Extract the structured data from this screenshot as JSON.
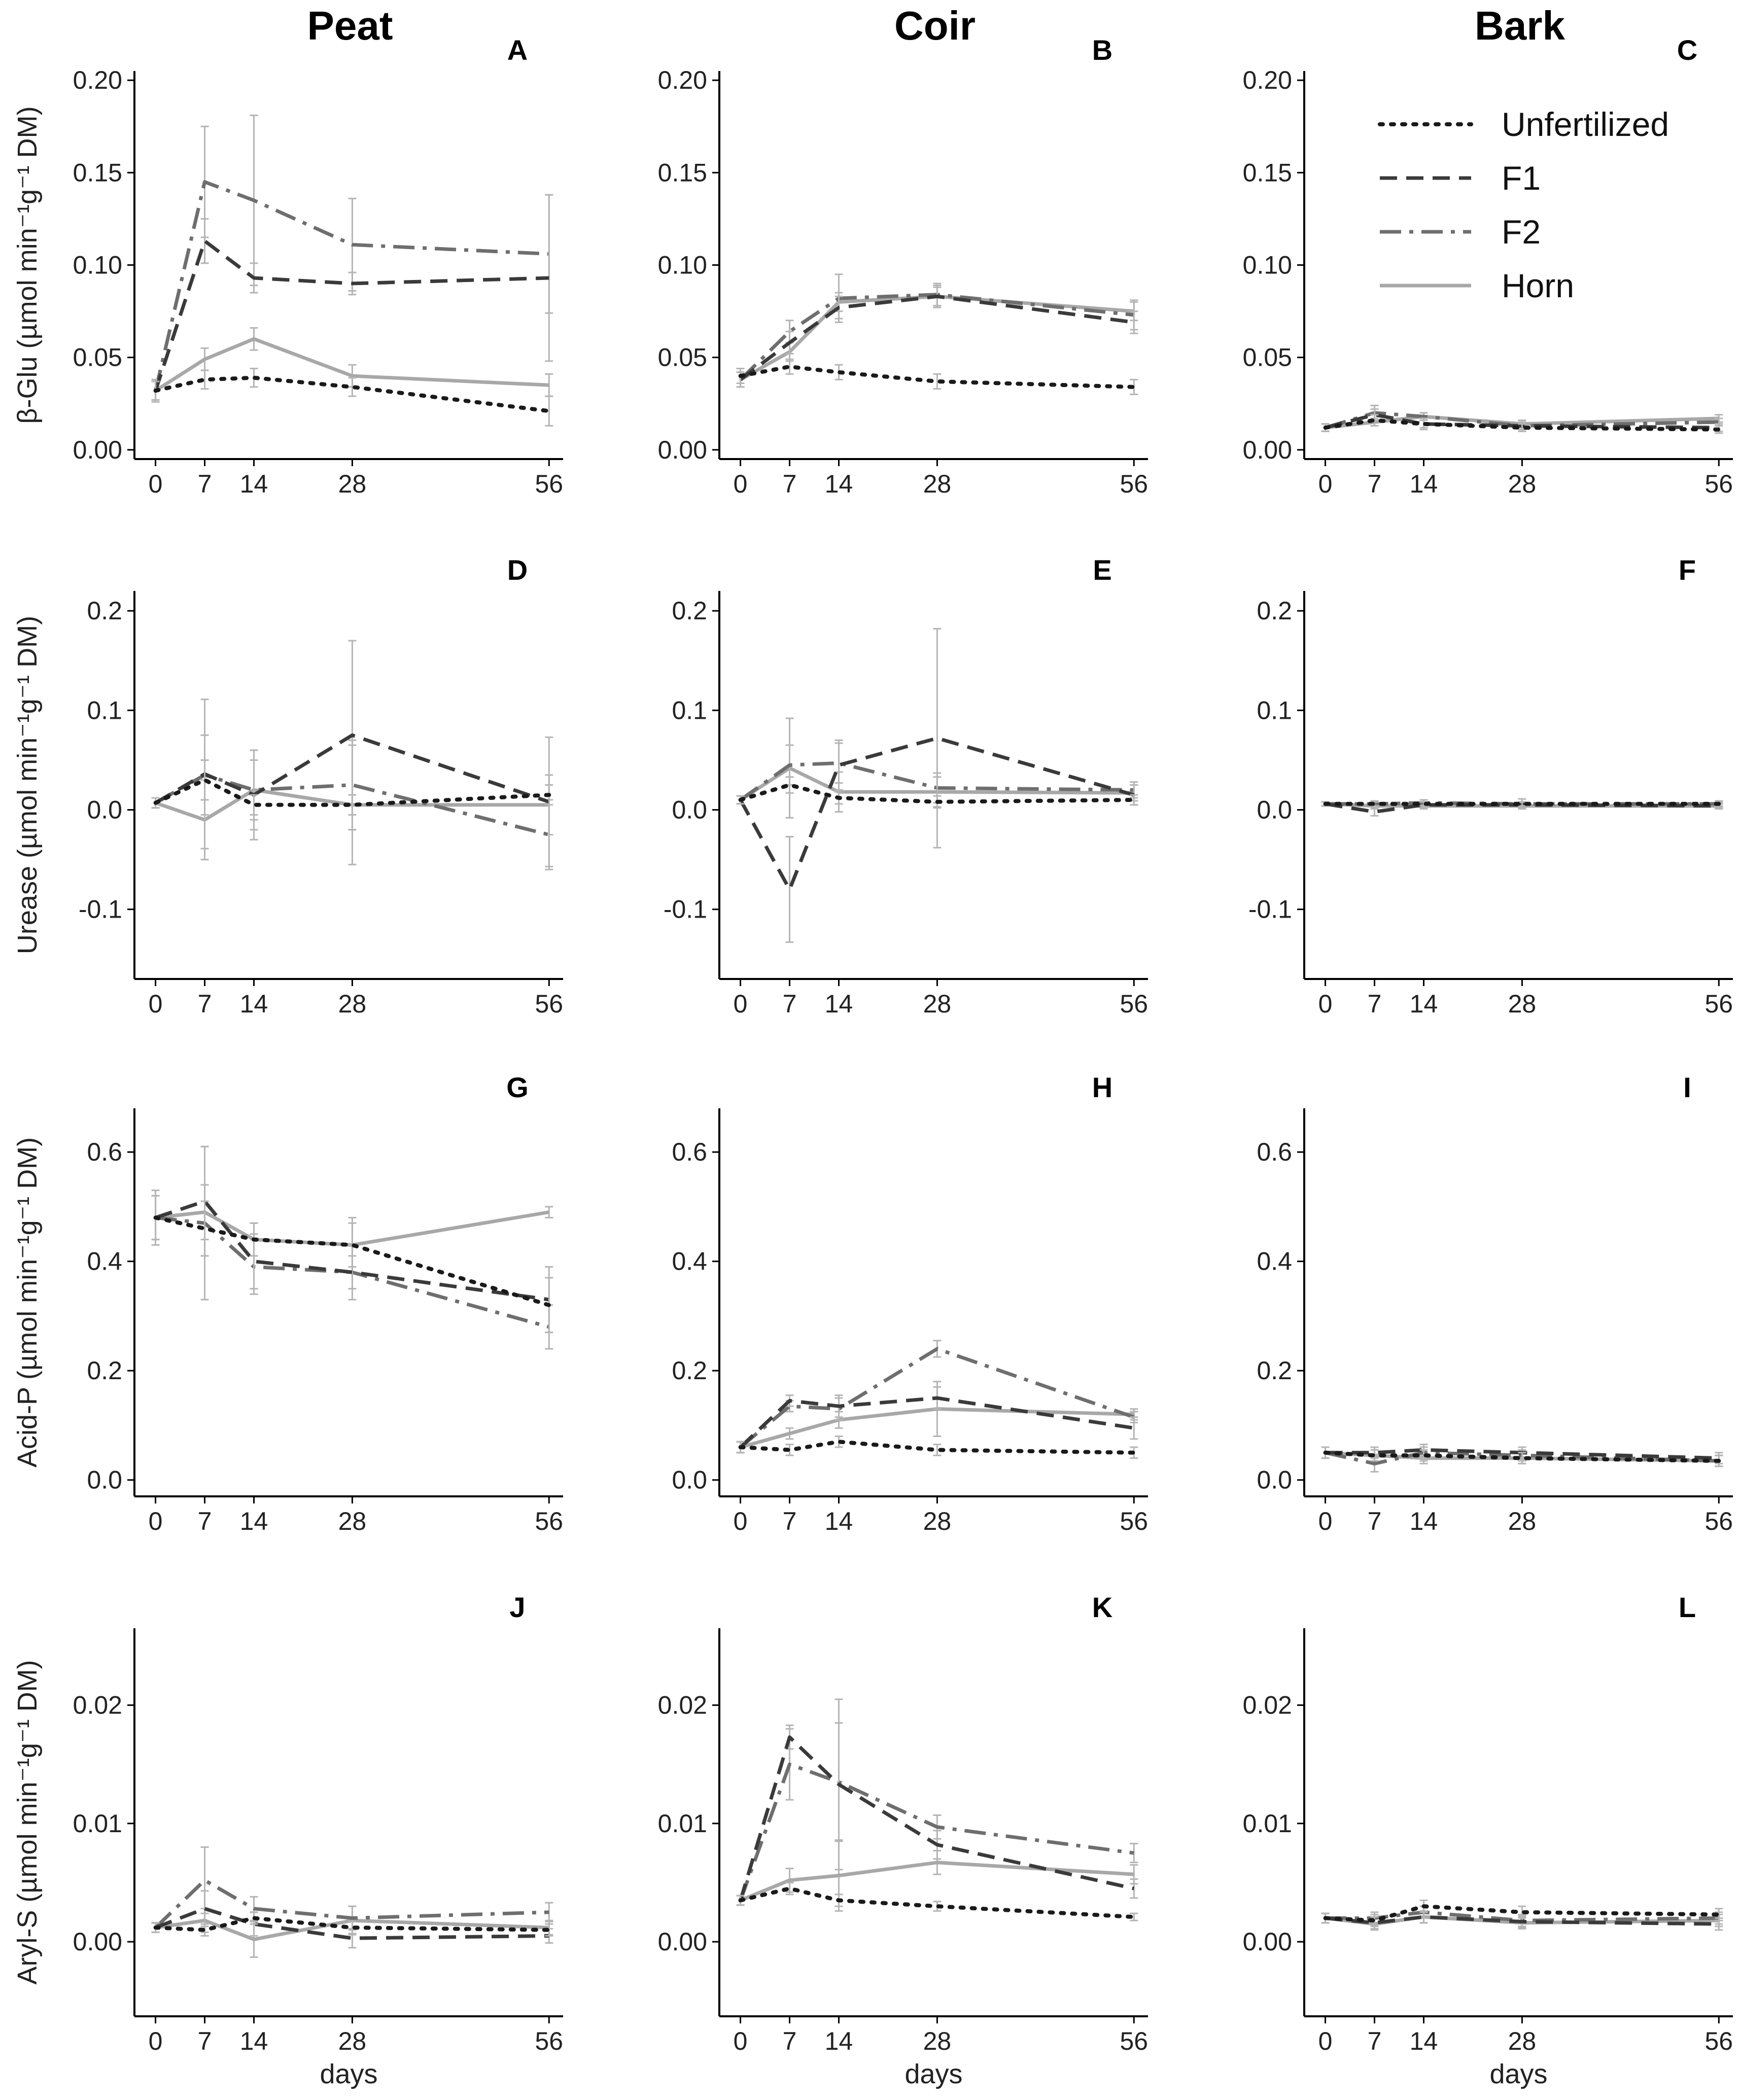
{
  "columns": [
    "Peat",
    "Coir",
    "Bark"
  ],
  "legend": [
    {
      "name": "Unfertilized",
      "color": "#1a1a1a",
      "dash": "dot"
    },
    {
      "name": "F1",
      "color": "#3a3a3a",
      "dash": "dash"
    },
    {
      "name": "F2",
      "color": "#6e6e6e",
      "dash": "dashdot"
    },
    {
      "name": "Horn",
      "color": "#a8a8a8",
      "dash": "solid"
    }
  ],
  "legend_position": "top-right of panel C",
  "x_ticks": [
    0,
    7,
    14,
    28,
    56
  ],
  "x_ticks_visible": [
    0,
    7,
    14,
    28,
    56
  ],
  "xlabel": "days",
  "grid": false,
  "chart_data": [
    {
      "type": "line",
      "panel": "A",
      "ylabel": "β-Glu (µmol min⁻¹g⁻¹ DM)",
      "ylim": [
        -0.005,
        0.205
      ],
      "yticks": [
        "0.00",
        "0.05",
        "0.10",
        "0.15",
        "0.20"
      ],
      "x": [
        0,
        7,
        14,
        28,
        56
      ],
      "series": [
        {
          "name": "Unfertilized",
          "values": [
            0.032,
            0.038,
            0.039,
            0.034,
            0.021
          ],
          "err": [
            0.005,
            0.005,
            0.005,
            0.005,
            0.008
          ]
        },
        {
          "name": "F1",
          "values": [
            0.032,
            0.113,
            0.093,
            0.09,
            0.093
          ],
          "err": [
            0.006,
            0.012,
            0.008,
            0.006,
            0.045
          ]
        },
        {
          "name": "F2",
          "values": [
            0.032,
            0.145,
            0.135,
            0.111,
            0.106
          ],
          "err": [
            0.006,
            0.03,
            0.046,
            0.025,
            0.032
          ]
        },
        {
          "name": "Horn",
          "values": [
            0.032,
            0.049,
            0.06,
            0.04,
            0.035
          ],
          "err": [
            0.006,
            0.006,
            0.006,
            0.006,
            0.006
          ]
        }
      ]
    },
    {
      "type": "line",
      "panel": "B",
      "ylabel": "",
      "ylim": [
        -0.005,
        0.205
      ],
      "yticks": [
        "0.00",
        "0.05",
        "0.10",
        "0.15",
        "0.20"
      ],
      "x": [
        0,
        7,
        14,
        28,
        56
      ],
      "series": [
        {
          "name": "Unfertilized",
          "values": [
            0.04,
            0.045,
            0.042,
            0.037,
            0.034
          ],
          "err": [
            0.004,
            0.004,
            0.004,
            0.004,
            0.004
          ]
        },
        {
          "name": "F1",
          "values": [
            0.038,
            0.058,
            0.077,
            0.083,
            0.069
          ],
          "err": [
            0.004,
            0.006,
            0.006,
            0.006,
            0.006
          ]
        },
        {
          "name": "F2",
          "values": [
            0.038,
            0.064,
            0.082,
            0.084,
            0.073
          ],
          "err": [
            0.004,
            0.006,
            0.013,
            0.006,
            0.008
          ]
        },
        {
          "name": "Horn",
          "values": [
            0.038,
            0.053,
            0.08,
            0.083,
            0.075
          ],
          "err": [
            0.004,
            0.005,
            0.005,
            0.005,
            0.005
          ]
        }
      ]
    },
    {
      "type": "line",
      "panel": "C",
      "ylabel": "",
      "ylim": [
        -0.005,
        0.205
      ],
      "yticks": [
        "0.00",
        "0.05",
        "0.10",
        "0.15",
        "0.20"
      ],
      "x": [
        0,
        7,
        14,
        28,
        56
      ],
      "series": [
        {
          "name": "Unfertilized",
          "values": [
            0.012,
            0.016,
            0.014,
            0.012,
            0.011
          ],
          "err": [
            0.002,
            0.003,
            0.002,
            0.002,
            0.002
          ]
        },
        {
          "name": "F1",
          "values": [
            0.012,
            0.019,
            0.014,
            0.013,
            0.012
          ],
          "err": [
            0.002,
            0.003,
            0.003,
            0.002,
            0.002
          ]
        },
        {
          "name": "F2",
          "values": [
            0.012,
            0.02,
            0.018,
            0.013,
            0.015
          ],
          "err": [
            0.002,
            0.004,
            0.002,
            0.002,
            0.002
          ]
        },
        {
          "name": "Horn",
          "values": [
            0.012,
            0.015,
            0.018,
            0.014,
            0.017
          ],
          "err": [
            0.002,
            0.002,
            0.002,
            0.002,
            0.002
          ]
        }
      ]
    },
    {
      "type": "line",
      "panel": "D",
      "ylabel": "Urease (µmol min⁻¹g⁻¹ DM)",
      "ylim": [
        -0.17,
        0.22
      ],
      "yticks": [
        "-0.1",
        "0.0",
        "0.1",
        "0.2"
      ],
      "x": [
        0,
        7,
        14,
        28,
        56
      ],
      "series": [
        {
          "name": "Unfertilized",
          "values": [
            0.007,
            0.03,
            0.005,
            0.005,
            0.015
          ],
          "err": [
            0.005,
            0.02,
            0.01,
            0.01,
            0.01
          ]
        },
        {
          "name": "F1",
          "values": [
            0.007,
            0.036,
            0.015,
            0.075,
            0.008
          ],
          "err": [
            0.005,
            0.075,
            0.045,
            0.095,
            0.065
          ]
        },
        {
          "name": "F2",
          "values": [
            0.007,
            0.035,
            0.02,
            0.025,
            -0.025
          ],
          "err": [
            0.005,
            0.04,
            0.04,
            0.045,
            0.035
          ]
        },
        {
          "name": "Horn",
          "values": [
            0.007,
            -0.01,
            0.02,
            0.005,
            0.005
          ],
          "err": [
            0.005,
            0.04,
            0.03,
            0.06,
            0.03
          ]
        }
      ]
    },
    {
      "type": "line",
      "panel": "E",
      "ylabel": "",
      "ylim": [
        -0.17,
        0.22
      ],
      "yticks": [
        "-0.1",
        "0.0",
        "0.1",
        "0.2"
      ],
      "x": [
        0,
        7,
        14,
        28,
        56
      ],
      "series": [
        {
          "name": "Unfertilized",
          "values": [
            0.01,
            0.025,
            0.012,
            0.008,
            0.01
          ],
          "err": [
            0.004,
            0.008,
            0.006,
            0.006,
            0.005
          ]
        },
        {
          "name": "F1",
          "values": [
            0.01,
            -0.08,
            0.045,
            0.072,
            0.015
          ],
          "err": [
            0.004,
            0.053,
            0.025,
            0.11,
            0.01
          ]
        },
        {
          "name": "F2",
          "values": [
            0.01,
            0.045,
            0.047,
            0.022,
            0.02
          ],
          "err": [
            0.004,
            0.02,
            0.02,
            0.015,
            0.008
          ]
        },
        {
          "name": "Horn",
          "values": [
            0.01,
            0.042,
            0.018,
            0.018,
            0.017
          ],
          "err": [
            0.004,
            0.05,
            0.02,
            0.015,
            0.008
          ]
        }
      ]
    },
    {
      "type": "line",
      "panel": "F",
      "ylabel": "",
      "ylim": [
        -0.17,
        0.22
      ],
      "yticks": [
        "-0.1",
        "0.0",
        "0.1",
        "0.2"
      ],
      "x": [
        0,
        7,
        14,
        28,
        56
      ],
      "series": [
        {
          "name": "Unfertilized",
          "values": [
            0.006,
            0.006,
            0.006,
            0.006,
            0.006
          ],
          "err": [
            0.002,
            0.002,
            0.002,
            0.002,
            0.002
          ]
        },
        {
          "name": "F1",
          "values": [
            0.006,
            -0.002,
            0.005,
            0.005,
            0.004
          ],
          "err": [
            0.002,
            0.004,
            0.003,
            0.003,
            0.002
          ]
        },
        {
          "name": "F2",
          "values": [
            0.006,
            0.006,
            0.007,
            0.006,
            0.006
          ],
          "err": [
            0.002,
            0.003,
            0.003,
            0.005,
            0.003
          ]
        },
        {
          "name": "Horn",
          "values": [
            0.006,
            0.004,
            0.004,
            0.004,
            0.004
          ],
          "err": [
            0.002,
            0.003,
            0.003,
            0.003,
            0.003
          ]
        }
      ]
    },
    {
      "type": "line",
      "panel": "G",
      "ylabel": "Acid-P (µmol min⁻¹g⁻¹ DM)",
      "ylim": [
        -0.03,
        0.68
      ],
      "yticks": [
        "0.0",
        "0.2",
        "0.4",
        "0.6"
      ],
      "x": [
        0,
        7,
        14,
        28,
        56
      ],
      "series": [
        {
          "name": "Unfertilized",
          "values": [
            0.48,
            0.46,
            0.44,
            0.43,
            0.32
          ],
          "err": [
            0.04,
            0.05,
            0.03,
            0.04,
            0.05
          ]
        },
        {
          "name": "F1",
          "values": [
            0.48,
            0.51,
            0.4,
            0.38,
            0.33
          ],
          "err": [
            0.04,
            0.1,
            0.05,
            0.05,
            0.06
          ]
        },
        {
          "name": "F2",
          "values": [
            0.48,
            0.47,
            0.39,
            0.38,
            0.28
          ],
          "err": [
            0.04,
            0.14,
            0.05,
            0.03,
            0.04
          ]
        },
        {
          "name": "Horn",
          "values": [
            0.48,
            0.49,
            0.44,
            0.43,
            0.49
          ],
          "err": [
            0.05,
            0.05,
            0.03,
            0.05,
            0.01
          ]
        }
      ]
    },
    {
      "type": "line",
      "panel": "H",
      "ylabel": "",
      "ylim": [
        -0.03,
        0.68
      ],
      "yticks": [
        "0.0",
        "0.2",
        "0.4",
        "0.6"
      ],
      "x": [
        0,
        7,
        14,
        28,
        56
      ],
      "series": [
        {
          "name": "Unfertilized",
          "values": [
            0.06,
            0.055,
            0.07,
            0.055,
            0.05
          ],
          "err": [
            0.01,
            0.01,
            0.01,
            0.01,
            0.01
          ]
        },
        {
          "name": "F1",
          "values": [
            0.06,
            0.145,
            0.135,
            0.15,
            0.095
          ],
          "err": [
            0.01,
            0.01,
            0.02,
            0.02,
            0.02
          ]
        },
        {
          "name": "F2",
          "values": [
            0.06,
            0.135,
            0.13,
            0.24,
            0.115
          ],
          "err": [
            0.01,
            0.01,
            0.02,
            0.015,
            0.01
          ]
        },
        {
          "name": "Horn",
          "values": [
            0.06,
            0.085,
            0.11,
            0.13,
            0.12
          ],
          "err": [
            0.01,
            0.01,
            0.015,
            0.05,
            0.01
          ]
        }
      ]
    },
    {
      "type": "line",
      "panel": "I",
      "ylabel": "",
      "ylim": [
        -0.03,
        0.68
      ],
      "yticks": [
        "0.0",
        "0.2",
        "0.4",
        "0.6"
      ],
      "x": [
        0,
        7,
        14,
        28,
        56
      ],
      "series": [
        {
          "name": "Unfertilized",
          "values": [
            0.05,
            0.045,
            0.045,
            0.04,
            0.035
          ],
          "err": [
            0.01,
            0.01,
            0.01,
            0.01,
            0.01
          ]
        },
        {
          "name": "F1",
          "values": [
            0.05,
            0.05,
            0.055,
            0.05,
            0.04
          ],
          "err": [
            0.01,
            0.01,
            0.01,
            0.01,
            0.01
          ]
        },
        {
          "name": "F2",
          "values": [
            0.05,
            0.03,
            0.05,
            0.045,
            0.035
          ],
          "err": [
            0.01,
            0.015,
            0.01,
            0.01,
            0.01
          ]
        },
        {
          "name": "Horn",
          "values": [
            0.05,
            0.045,
            0.04,
            0.04,
            0.035
          ],
          "err": [
            0.01,
            0.01,
            0.01,
            0.01,
            0.01
          ]
        }
      ]
    },
    {
      "type": "line",
      "panel": "J",
      "ylabel": "Aryl-S (µmol min⁻¹g⁻¹ DM)",
      "ylim": [
        -0.0063,
        0.0265
      ],
      "yticks": [
        "0.00",
        "0.01",
        "0.02"
      ],
      "x": [
        0,
        7,
        14,
        28,
        56
      ],
      "series": [
        {
          "name": "Unfertilized",
          "values": [
            0.0012,
            0.001,
            0.002,
            0.0012,
            0.001
          ],
          "err": [
            0.0004,
            0.0005,
            0.0005,
            0.0005,
            0.0005
          ]
        },
        {
          "name": "F1",
          "values": [
            0.0012,
            0.0028,
            0.0015,
            0.0003,
            0.0005
          ],
          "err": [
            0.0004,
            0.0015,
            0.001,
            0.0008,
            0.0006
          ]
        },
        {
          "name": "F2",
          "values": [
            0.0012,
            0.0052,
            0.0028,
            0.002,
            0.0025
          ],
          "err": [
            0.0004,
            0.0028,
            0.001,
            0.001,
            0.0008
          ]
        },
        {
          "name": "Horn",
          "values": [
            0.0012,
            0.0018,
            0.0002,
            0.0018,
            0.0012
          ],
          "err": [
            0.0004,
            0.001,
            0.0015,
            0.0012,
            0.0006
          ]
        }
      ]
    },
    {
      "type": "line",
      "panel": "K",
      "ylabel": "",
      "ylim": [
        -0.0063,
        0.0265
      ],
      "yticks": [
        "0.00",
        "0.01",
        "0.02"
      ],
      "x": [
        0,
        7,
        14,
        28,
        56
      ],
      "series": [
        {
          "name": "Unfertilized",
          "values": [
            0.0035,
            0.0045,
            0.0035,
            0.003,
            0.0021
          ],
          "err": [
            0.0004,
            0.0005,
            0.0005,
            0.0004,
            0.0003
          ]
        },
        {
          "name": "F1",
          "values": [
            0.0035,
            0.0173,
            0.0133,
            0.0082,
            0.0045
          ],
          "err": [
            0.0004,
            0.001,
            0.0072,
            0.0012,
            0.0008
          ]
        },
        {
          "name": "F2",
          "values": [
            0.0035,
            0.015,
            0.0135,
            0.0097,
            0.0075
          ],
          "err": [
            0.0004,
            0.003,
            0.005,
            0.001,
            0.0008
          ]
        },
        {
          "name": "Horn",
          "values": [
            0.0035,
            0.0052,
            0.0056,
            0.0067,
            0.0057
          ],
          "err": [
            0.0004,
            0.001,
            0.003,
            0.001,
            0.0008
          ]
        }
      ]
    },
    {
      "type": "line",
      "panel": "L",
      "ylabel": "",
      "ylim": [
        -0.0063,
        0.0265
      ],
      "yticks": [
        "0.00",
        "0.01",
        "0.02"
      ],
      "x": [
        0,
        7,
        14,
        28,
        56
      ],
      "series": [
        {
          "name": "Unfertilized",
          "values": [
            0.002,
            0.0018,
            0.003,
            0.0025,
            0.0023
          ],
          "err": [
            0.0004,
            0.0005,
            0.0005,
            0.0005,
            0.0005
          ]
        },
        {
          "name": "F1",
          "values": [
            0.002,
            0.0016,
            0.0021,
            0.0017,
            0.0015
          ],
          "err": [
            0.0004,
            0.0005,
            0.0005,
            0.0005,
            0.0005
          ]
        },
        {
          "name": "F2",
          "values": [
            0.002,
            0.002,
            0.0025,
            0.0018,
            0.002
          ],
          "err": [
            0.0004,
            0.0005,
            0.0005,
            0.0005,
            0.0005
          ]
        },
        {
          "name": "Horn",
          "values": [
            0.002,
            0.0015,
            0.0021,
            0.0016,
            0.0018
          ],
          "err": [
            0.0004,
            0.0005,
            0.0005,
            0.0005,
            0.0005
          ]
        }
      ]
    }
  ]
}
